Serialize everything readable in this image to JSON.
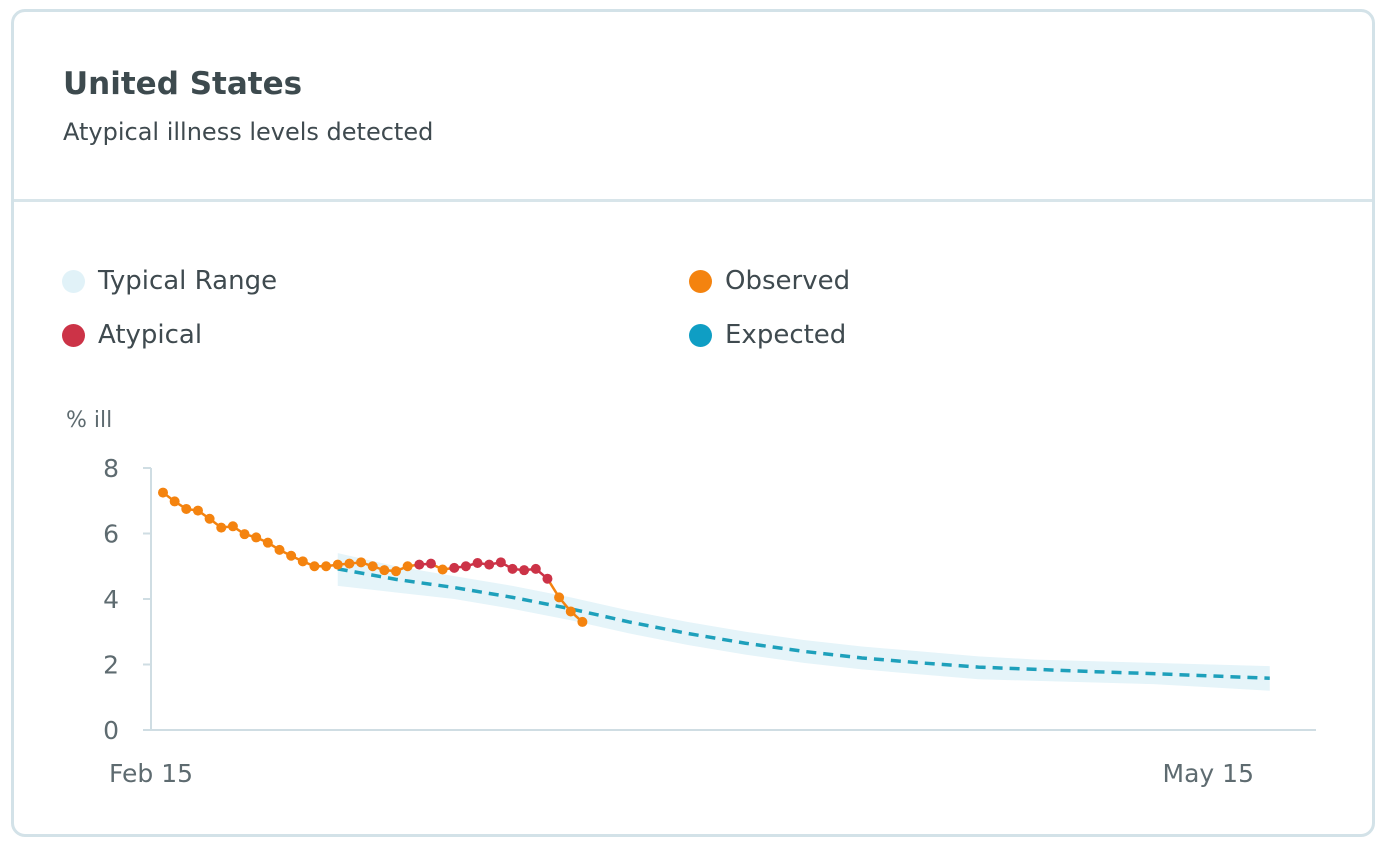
{
  "header": {
    "title": "United States",
    "subtitle": "Atypical illness levels detected"
  },
  "legend": [
    {
      "label": "Typical Range",
      "color": "#e1f2f8"
    },
    {
      "label": "Observed",
      "color": "#f4830f"
    },
    {
      "label": "Atypical",
      "color": "#cc3347"
    },
    {
      "label": "Expected",
      "color": "#0f9ec4"
    }
  ],
  "chart_data": {
    "type": "line",
    "ylabel": "% ill",
    "ylim": [
      0,
      8
    ],
    "yticks": [
      "0",
      "2",
      "4",
      "6",
      "8"
    ],
    "xticks": [
      {
        "day": 0,
        "label": "Feb 15"
      },
      {
        "day": 90,
        "label": "May 15"
      }
    ],
    "xlim": [
      0,
      95
    ],
    "grid": false,
    "series": [
      {
        "name": "Observed",
        "color": "#f4830f",
        "atypical_color": "#cc3347",
        "points": [
          {
            "x": 0,
            "y": 7.25
          },
          {
            "x": 1,
            "y": 6.98
          },
          {
            "x": 2,
            "y": 6.75
          },
          {
            "x": 3,
            "y": 6.7
          },
          {
            "x": 4,
            "y": 6.45
          },
          {
            "x": 5,
            "y": 6.18
          },
          {
            "x": 6,
            "y": 6.22
          },
          {
            "x": 7,
            "y": 5.98
          },
          {
            "x": 8,
            "y": 5.88
          },
          {
            "x": 9,
            "y": 5.72
          },
          {
            "x": 10,
            "y": 5.5
          },
          {
            "x": 11,
            "y": 5.32
          },
          {
            "x": 12,
            "y": 5.15
          },
          {
            "x": 13,
            "y": 5.0
          },
          {
            "x": 14,
            "y": 5.0
          },
          {
            "x": 15,
            "y": 5.05
          },
          {
            "x": 16,
            "y": 5.08
          },
          {
            "x": 17,
            "y": 5.12
          },
          {
            "x": 18,
            "y": 5.0
          },
          {
            "x": 19,
            "y": 4.88
          },
          {
            "x": 20,
            "y": 4.85
          },
          {
            "x": 21,
            "y": 5.0
          },
          {
            "x": 22,
            "y": 5.05,
            "atypical": true
          },
          {
            "x": 23,
            "y": 5.08,
            "atypical": true
          },
          {
            "x": 24,
            "y": 4.9
          },
          {
            "x": 25,
            "y": 4.95,
            "atypical": true
          },
          {
            "x": 26,
            "y": 5.0,
            "atypical": true
          },
          {
            "x": 27,
            "y": 5.1,
            "atypical": true
          },
          {
            "x": 28,
            "y": 5.05,
            "atypical": true
          },
          {
            "x": 29,
            "y": 5.12,
            "atypical": true
          },
          {
            "x": 30,
            "y": 4.92,
            "atypical": true
          },
          {
            "x": 31,
            "y": 4.88,
            "atypical": true
          },
          {
            "x": 32,
            "y": 4.92,
            "atypical": true
          },
          {
            "x": 33,
            "y": 4.62,
            "atypical": true
          },
          {
            "x": 34,
            "y": 4.05
          },
          {
            "x": 35,
            "y": 3.62
          },
          {
            "x": 36,
            "y": 3.3
          }
        ]
      },
      {
        "name": "Expected",
        "color": "#1ea0bb",
        "points": [
          {
            "x": 15,
            "y": 4.92
          },
          {
            "x": 20,
            "y": 4.6
          },
          {
            "x": 25,
            "y": 4.35
          },
          {
            "x": 30,
            "y": 4.05
          },
          {
            "x": 35,
            "y": 3.7
          },
          {
            "x": 40,
            "y": 3.3
          },
          {
            "x": 45,
            "y": 2.95
          },
          {
            "x": 50,
            "y": 2.65
          },
          {
            "x": 55,
            "y": 2.4
          },
          {
            "x": 60,
            "y": 2.2
          },
          {
            "x": 65,
            "y": 2.05
          },
          {
            "x": 70,
            "y": 1.92
          },
          {
            "x": 75,
            "y": 1.85
          },
          {
            "x": 80,
            "y": 1.78
          },
          {
            "x": 85,
            "y": 1.72
          },
          {
            "x": 90,
            "y": 1.65
          },
          {
            "x": 95,
            "y": 1.58
          }
        ]
      }
    ],
    "typical_range": {
      "name": "Typical Range",
      "color": "#e5f4f9",
      "x": [
        15,
        20,
        25,
        30,
        35,
        40,
        45,
        50,
        55,
        60,
        65,
        70,
        75,
        80,
        85,
        90,
        95
      ],
      "upper": [
        5.4,
        5.0,
        4.7,
        4.4,
        4.05,
        3.65,
        3.3,
        3.0,
        2.75,
        2.55,
        2.4,
        2.25,
        2.15,
        2.1,
        2.05,
        2.0,
        1.95
      ],
      "lower": [
        4.4,
        4.2,
        4.0,
        3.7,
        3.35,
        2.95,
        2.6,
        2.3,
        2.05,
        1.85,
        1.7,
        1.55,
        1.5,
        1.45,
        1.4,
        1.3,
        1.2
      ]
    }
  }
}
